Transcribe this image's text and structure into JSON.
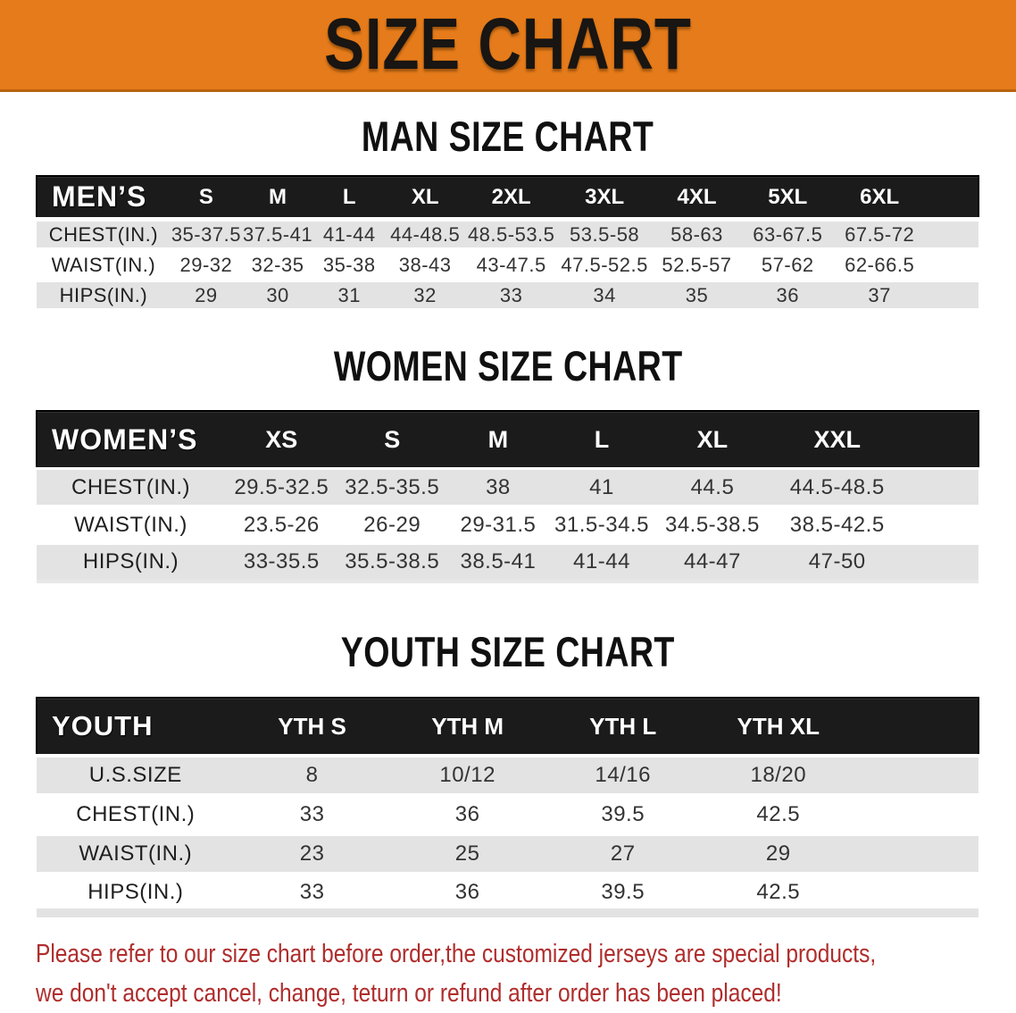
{
  "banner": {
    "title": "SIZE CHART"
  },
  "colors": {
    "banner_orange": "#E57B1A",
    "header_bar_black": "#1B1B1B",
    "stripe_gray": "#E3E3E3",
    "footer_red": "#AF2D2C"
  },
  "sections": {
    "men": {
      "heading": "MAN SIZE CHART"
    },
    "women": {
      "heading": "WOMEN SIZE CHART"
    },
    "youth": {
      "heading": "YOUTH SIZE CHART"
    }
  },
  "tables": {
    "men": {
      "label_header": "MEN’S",
      "size_headers": [
        "S",
        "M",
        "L",
        "XL",
        "2XL",
        "3XL",
        "4XL",
        "5XL",
        "6XL"
      ],
      "rows": [
        {
          "label": "CHEST(IN.)",
          "values": [
            "35-37.5",
            "37.5-41",
            "41-44",
            "44-48.5",
            "48.5-53.5",
            "53.5-58",
            "58-63",
            "63-67.5",
            "67.5-72"
          ]
        },
        {
          "label": "WAIST(IN.)",
          "values": [
            "29-32",
            "32-35",
            "35-38",
            "38-43",
            "43-47.5",
            "47.5-52.5",
            "52.5-57",
            "57-62",
            "62-66.5"
          ]
        },
        {
          "label": "HIPS(IN.)",
          "values": [
            "29",
            "30",
            "31",
            "32",
            "33",
            "34",
            "35",
            "36",
            "37"
          ]
        }
      ]
    },
    "women": {
      "label_header": "WOMEN’S",
      "size_headers": [
        "XS",
        "S",
        "M",
        "L",
        "XL",
        "XXL"
      ],
      "rows": [
        {
          "label": "CHEST(IN.)",
          "values": [
            "29.5-32.5",
            "32.5-35.5",
            "38",
            "41",
            "44.5",
            "44.5-48.5"
          ]
        },
        {
          "label": "WAIST(IN.)",
          "values": [
            "23.5-26",
            "26-29",
            "29-31.5",
            "31.5-34.5",
            "34.5-38.5",
            "38.5-42.5"
          ]
        },
        {
          "label": "HIPS(IN.)",
          "values": [
            "33-35.5",
            "35.5-38.5",
            "38.5-41",
            "41-44",
            "44-47",
            "47-50"
          ]
        }
      ]
    },
    "youth": {
      "label_header": "YOUTH",
      "size_headers": [
        "YTH S",
        "YTH M",
        "YTH L",
        "YTH XL"
      ],
      "rows": [
        {
          "label": "U.S.SIZE",
          "values": [
            "8",
            "10/12",
            "14/16",
            "18/20"
          ]
        },
        {
          "label": "CHEST(IN.)",
          "values": [
            "33",
            "36",
            "39.5",
            "42.5"
          ]
        },
        {
          "label": "WAIST(IN.)",
          "values": [
            "23",
            "25",
            "27",
            "29"
          ]
        },
        {
          "label": "HIPS(IN.)",
          "values": [
            "33",
            "36",
            "39.5",
            "42.5"
          ]
        }
      ]
    }
  },
  "footer": {
    "line1": "Please refer to our size chart before order,the customized jerseys are special products,",
    "line2": "we don't accept cancel, change, teturn or refund after order has been placed!"
  }
}
